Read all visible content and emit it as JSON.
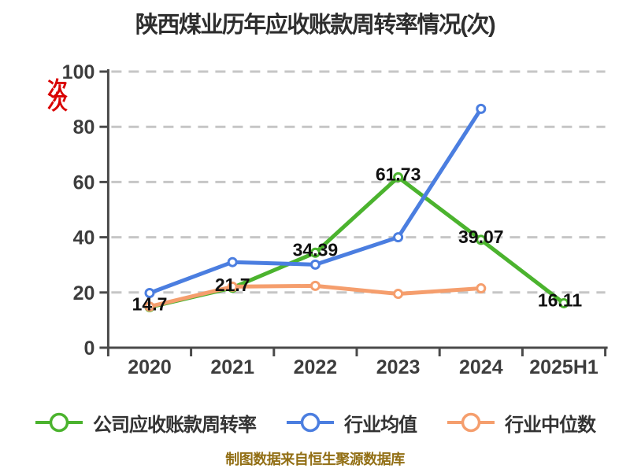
{
  "title": "陕西煤业历年应收账款周转率情况(次)",
  "y_axis_unit": "次",
  "footer": "制图数据来自恒生聚源数据库",
  "legend": [
    {
      "label": "公司应收账款周转率",
      "color": "#4bb32e"
    },
    {
      "label": "行业均值",
      "color": "#4b7ee0"
    },
    {
      "label": "行业中位数",
      "color": "#f59e6d"
    }
  ],
  "chart_data": {
    "type": "line",
    "title": "陕西煤业历年应收账款周转率情况(次)",
    "categories": [
      "2020",
      "2021",
      "2022",
      "2023",
      "2024",
      "2025H1"
    ],
    "series": [
      {
        "name": "公司应收账款周转率",
        "color": "#4bb32e",
        "values": [
          14.7,
          21.7,
          34.39,
          61.73,
          39.07,
          16.11
        ],
        "labeled": true
      },
      {
        "name": "行业均值",
        "color": "#4b7ee0",
        "values": [
          19.8,
          31.0,
          30.1,
          40.0,
          86.5,
          null
        ],
        "labeled": false
      },
      {
        "name": "行业中位数",
        "color": "#f59e6d",
        "values": [
          14.9,
          22.1,
          22.4,
          19.5,
          21.5,
          null
        ],
        "labeled": false
      }
    ],
    "data_labels": [
      "14.7",
      "21.7",
      "34.39",
      "61.73",
      "39.07",
      "16.11"
    ],
    "ylim": [
      0,
      100
    ],
    "yticks": [
      0,
      20,
      40,
      60,
      80,
      100
    ],
    "grid": "dashed-horizontal",
    "legend_position": "bottom",
    "colors": {
      "axis": "#4a4a4a",
      "grid": "#c6c6c6",
      "tick_label": "#3d3d3d",
      "data_label": "#101010",
      "title": "#2e2e2e",
      "footer": "#926f15",
      "y_unit": "#d90000",
      "marker_fill": "#ffffff"
    }
  }
}
